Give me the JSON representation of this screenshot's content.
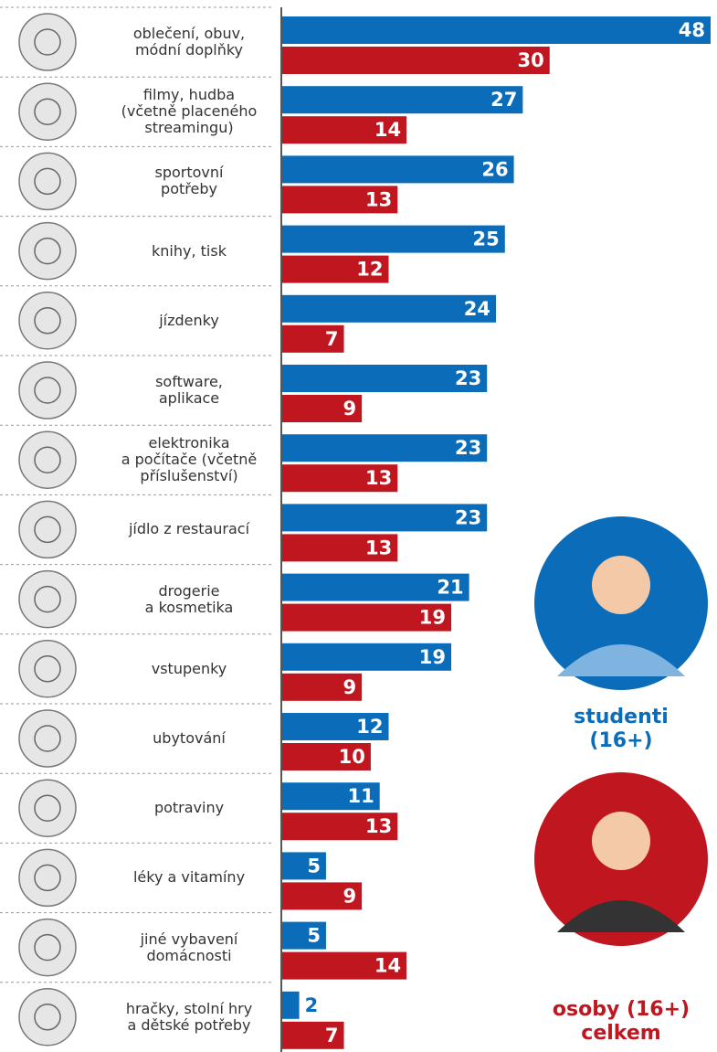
{
  "chart_data": {
    "type": "bar",
    "categories": [
      "oblečení, obuv,\nmódní doplňky",
      "filmy, hudba\n(včetně placeného\nstreamingu)",
      "sportovní\npotřeby",
      "knihy, tisk",
      "jízdenky",
      "software,\naplikace",
      "elektronika\na počítače (včetně\npříslušenství)",
      "jídlo z restaurací",
      "drogerie\na kosmetika",
      "vstupenky",
      "ubytování",
      "potraviny",
      "léky a vitamíny",
      "jiné vybavení\ndomácnosti",
      "hračky, stolní hry\na dětské potřeby"
    ],
    "series": [
      {
        "name": "studenti\n(16+)",
        "color": "#0b6dba",
        "values": [
          48,
          27,
          26,
          25,
          24,
          23,
          23,
          23,
          21,
          19,
          12,
          11,
          5,
          5,
          2
        ]
      },
      {
        "name": "osoby (16+)\ncelkem",
        "color": "#c0161f",
        "values": [
          30,
          14,
          13,
          12,
          7,
          9,
          13,
          13,
          19,
          9,
          10,
          13,
          9,
          14,
          7
        ]
      }
    ]
  }
}
